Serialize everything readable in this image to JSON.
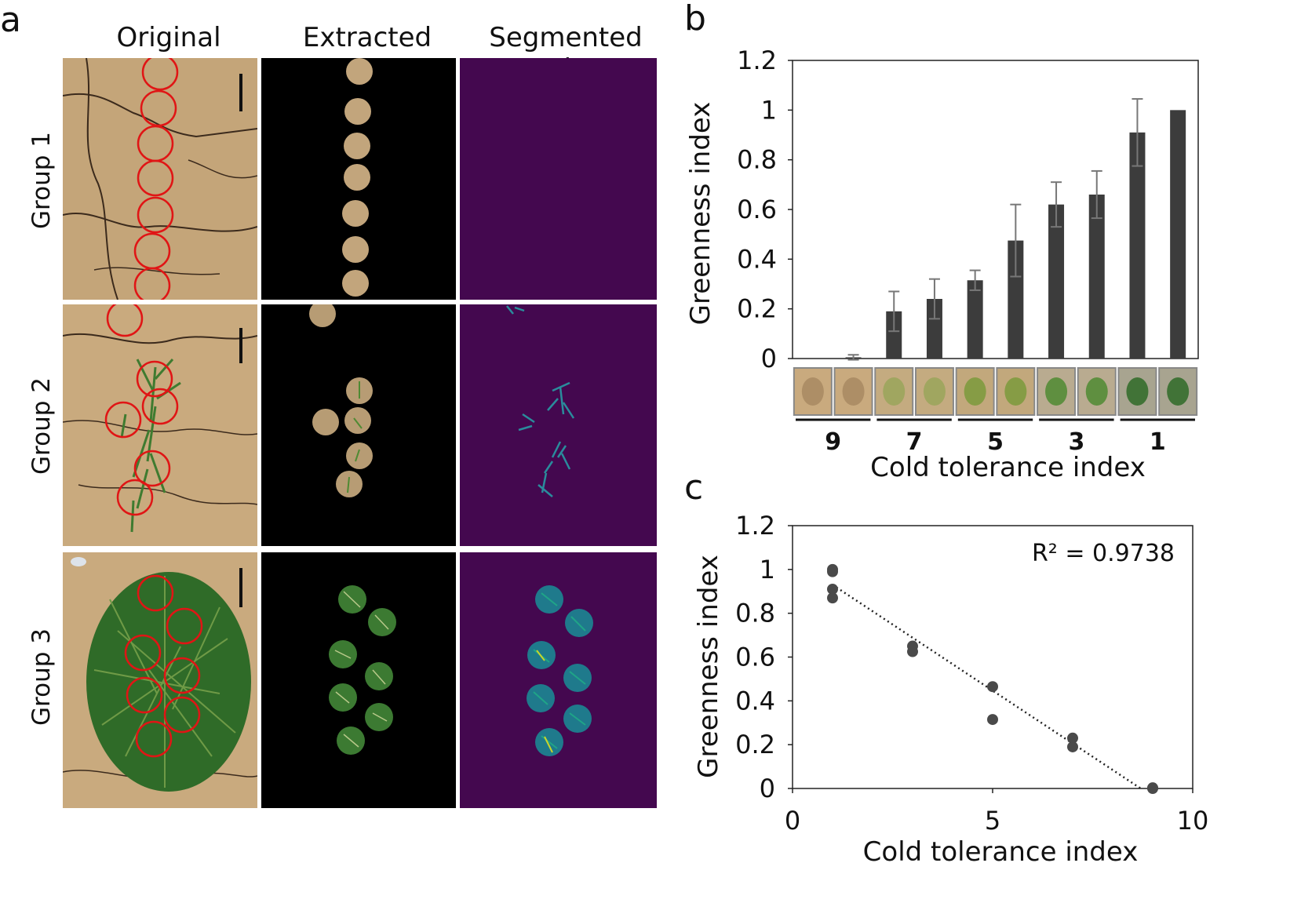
{
  "panel_a": {
    "letter": "a",
    "column_headers": [
      "Original",
      "Extracted",
      "Segmented color"
    ],
    "row_labels": [
      "Group 1",
      "Group 2",
      "Group 3"
    ],
    "colors": {
      "soil": "#c9aa7e",
      "soil_dark": "#a88a62",
      "crack": "#3b2a1c",
      "circle": "#e01515",
      "plant": "#2f6b28",
      "plant_light": "#6f9a46",
      "extracted_bg": "#000000",
      "segmented_bg": "#44084f",
      "segment_cyan": "#2a8c9c",
      "segment_teal": "#1fa587",
      "segment_yellow": "#c9d42a"
    }
  },
  "panel_b": {
    "letter": "b",
    "thumbnail_icons": [
      "soil-thumb",
      "soil-thumb",
      "sparse-thumb",
      "sparse-thumb",
      "medium-thumb",
      "medium-thumb",
      "leafy-thumb",
      "leafy-thumb",
      "dense-thumb",
      "dense-thumb"
    ]
  },
  "panel_c": {
    "letter": "c",
    "r2_label": "R² = 0.9738"
  },
  "chart_data": [
    {
      "type": "bar",
      "ylabel": "Greenness index",
      "xlabel": "Cold tolerance index",
      "ylim": [
        0,
        1.2
      ],
      "yticks": [
        "0",
        "0.2",
        "0.4",
        "0.6",
        "0.8",
        "1",
        "1.2"
      ],
      "group_labels": [
        "9",
        "7",
        "5",
        "3",
        "1"
      ],
      "values": [
        0.0,
        0.005,
        0.19,
        0.24,
        0.315,
        0.475,
        0.62,
        0.66,
        0.91,
        1.0
      ],
      "errors": [
        0.0,
        0.01,
        0.08,
        0.08,
        0.04,
        0.145,
        0.09,
        0.095,
        0.135,
        0.0
      ],
      "bar_color": "#3c3c3c",
      "grid": false
    },
    {
      "type": "scatter",
      "ylabel": "Greenness index",
      "xlabel": "Cold tolerance index",
      "xlim": [
        0,
        10
      ],
      "ylim": [
        0,
        1.2
      ],
      "xticks": [
        "0",
        "5",
        "10"
      ],
      "yticks": [
        "0",
        "0.2",
        "0.4",
        "0.6",
        "0.8",
        "1",
        "1.2"
      ],
      "points": [
        {
          "x": 1,
          "y": 1.0
        },
        {
          "x": 1,
          "y": 0.99
        },
        {
          "x": 1,
          "y": 0.91
        },
        {
          "x": 1,
          "y": 0.87
        },
        {
          "x": 3,
          "y": 0.65
        },
        {
          "x": 3,
          "y": 0.625
        },
        {
          "x": 5,
          "y": 0.465
        },
        {
          "x": 5,
          "y": 0.315
        },
        {
          "x": 7,
          "y": 0.23
        },
        {
          "x": 7,
          "y": 0.19
        },
        {
          "x": 9,
          "y": 0.003
        },
        {
          "x": 9,
          "y": 0.0
        }
      ],
      "trendline": {
        "style": "dotted",
        "x": [
          1,
          8.7
        ],
        "y": [
          0.93,
          0.0
        ]
      },
      "point_color": "#4a4a4a",
      "grid": false
    }
  ]
}
